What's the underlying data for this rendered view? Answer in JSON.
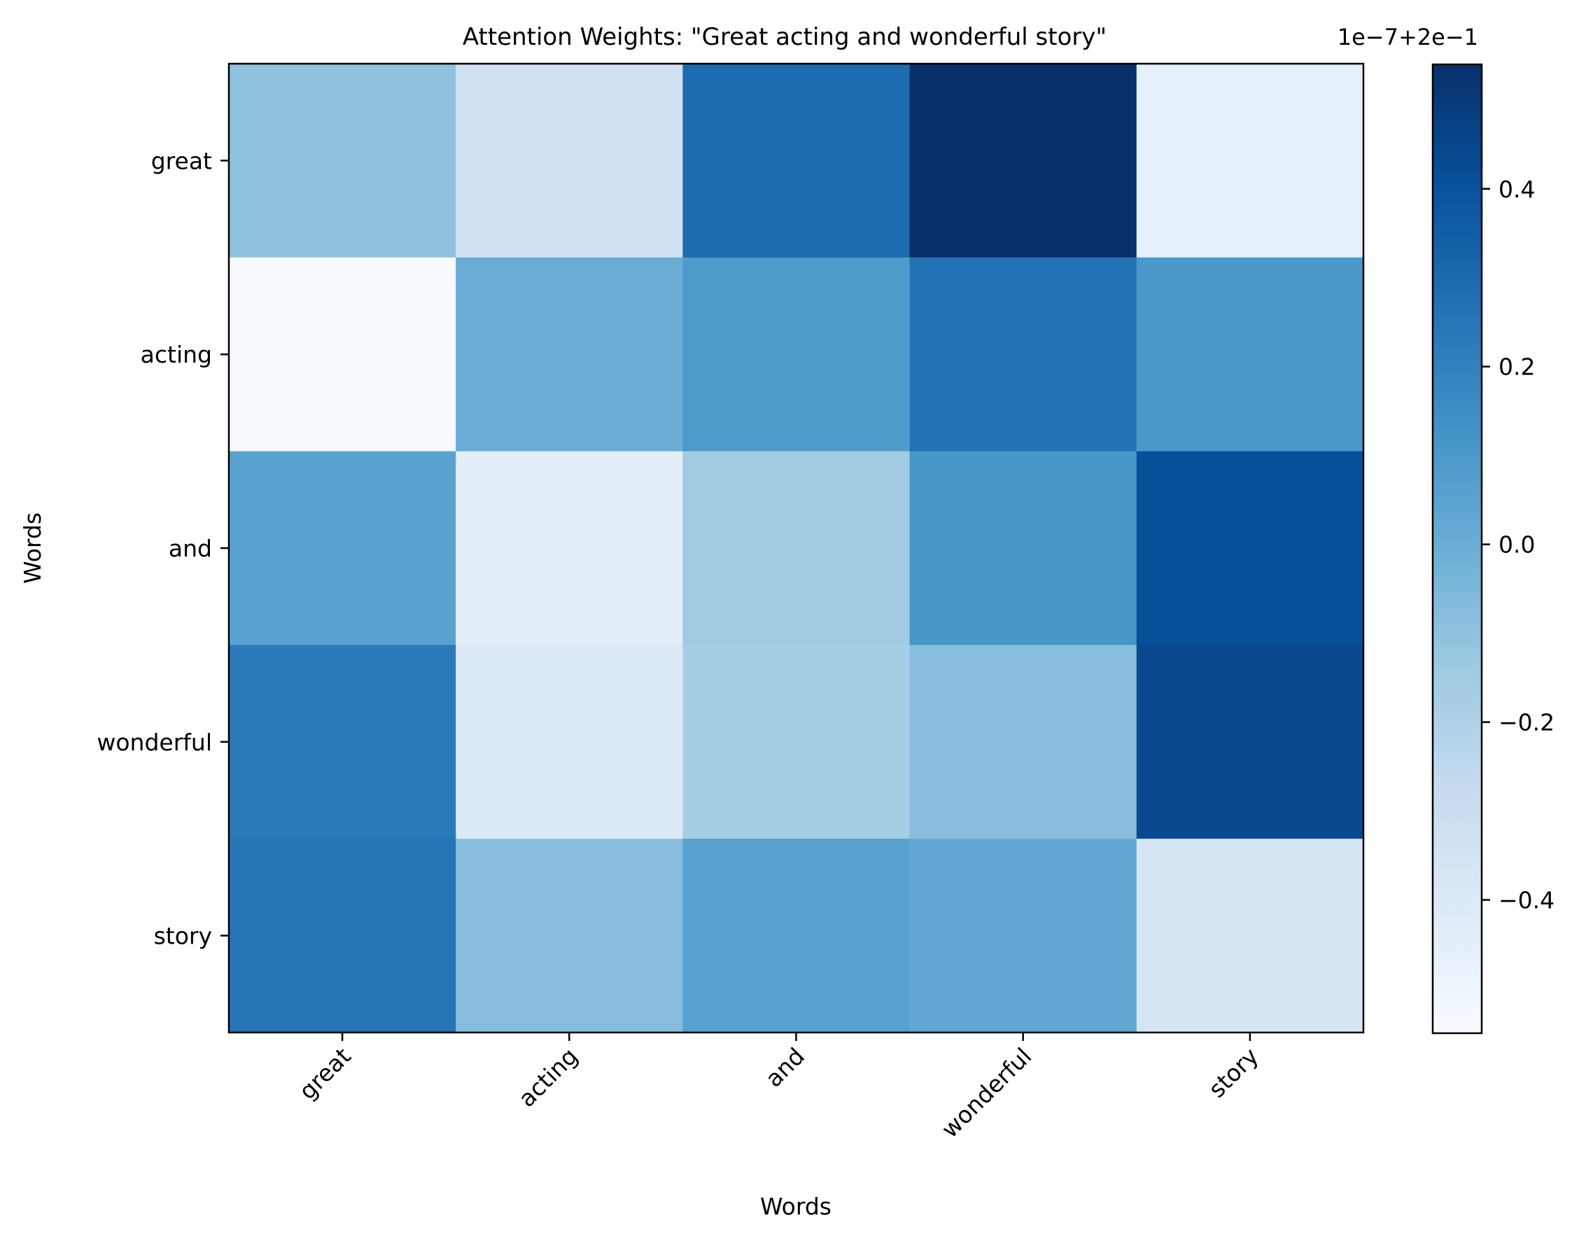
{
  "chart_data": {
    "type": "heatmap",
    "title": "Attention Weights: \"Great acting and wonderful story\"",
    "xlabel": "Words",
    "ylabel": "Words",
    "x_categories": [
      "great",
      "acting",
      "and",
      "wonderful",
      "story"
    ],
    "y_categories": [
      "great",
      "acting",
      "and",
      "wonderful",
      "story"
    ],
    "values_offset_e7": [
      [
        -0.1,
        -0.33,
        0.29,
        0.54,
        -0.46
      ],
      [
        -0.55,
        0.0,
        0.09,
        0.26,
        0.1
      ],
      [
        0.05,
        -0.44,
        -0.15,
        0.11,
        0.41
      ],
      [
        0.23,
        -0.4,
        -0.17,
        -0.08,
        0.44
      ],
      [
        0.25,
        -0.08,
        0.06,
        0.03,
        -0.36
      ]
    ],
    "colormap": "Blues",
    "colorbar": {
      "range": [
        -0.55,
        0.54
      ],
      "ticks": [
        -0.4,
        -0.2,
        0.0,
        0.2,
        0.4
      ],
      "tick_labels": [
        "−0.4",
        "−0.2",
        "0.0",
        "0.2",
        "0.4"
      ],
      "offset_text": "1e−7+2e−1"
    },
    "grid": false
  }
}
